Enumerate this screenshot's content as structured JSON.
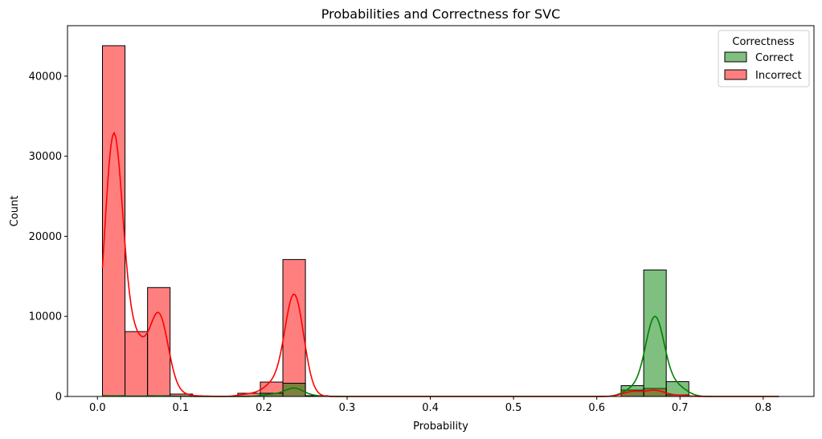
{
  "chart_data": {
    "type": "histogram",
    "title": "Probabilities and Correctness for SVC",
    "xlabel": "Probability",
    "ylabel": "Count",
    "xlim": [
      -0.036,
      0.861
    ],
    "ylim": [
      0,
      46300
    ],
    "x_ticks": [
      0.0,
      0.1,
      0.2,
      0.3,
      0.4,
      0.5,
      0.6,
      0.7,
      0.8
    ],
    "x_tick_labels": [
      "0.0",
      "0.1",
      "0.2",
      "0.3",
      "0.4",
      "0.5",
      "0.6",
      "0.7",
      "0.8"
    ],
    "y_ticks": [
      0,
      10000,
      20000,
      30000,
      40000
    ],
    "y_tick_labels": [
      "0",
      "10000",
      "20000",
      "30000",
      "40000"
    ],
    "bin_edges": [
      0.006,
      0.0331,
      0.0602,
      0.0873,
      0.1144,
      0.1415,
      0.1686,
      0.1957,
      0.2228,
      0.2499,
      0.277,
      0.3041,
      0.3312,
      0.3583,
      0.3854,
      0.4125,
      0.4396,
      0.4667,
      0.4938,
      0.5209,
      0.548,
      0.5751,
      0.6022,
      0.6293,
      0.6564,
      0.6835,
      0.7106,
      0.7377,
      0.7648,
      0.7919,
      0.819
    ],
    "legend": {
      "title": "Correctness",
      "position": "upper-right"
    },
    "series": [
      {
        "name": "Correct",
        "color": "#008000",
        "counts": [
          100,
          50,
          100,
          50,
          0,
          0,
          0,
          400,
          1650,
          100,
          0,
          0,
          0,
          0,
          0,
          0,
          0,
          0,
          0,
          0,
          0,
          0,
          0,
          1350,
          15800,
          1850,
          0,
          0,
          0,
          0
        ],
        "kde_peak_at": 0.671,
        "kde_peak_value": 10000
      },
      {
        "name": "Incorrect",
        "color": "#ff0000",
        "counts": [
          43800,
          8100,
          13600,
          300,
          50,
          0,
          400,
          1800,
          17100,
          0,
          0,
          0,
          0,
          0,
          0,
          0,
          0,
          0,
          0,
          0,
          0,
          0,
          0,
          800,
          1000,
          200,
          0,
          0,
          0,
          0
        ],
        "kde_peak_at": 0.014,
        "kde_peak_value": 32900
      }
    ],
    "grid": false
  }
}
